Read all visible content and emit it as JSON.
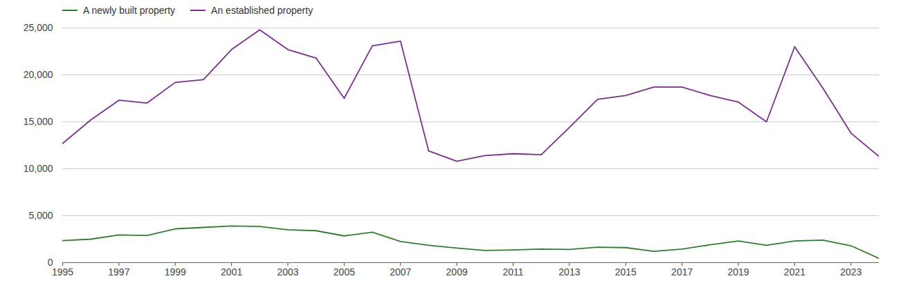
{
  "chart_data": {
    "type": "line",
    "x": [
      1995,
      1996,
      1997,
      1998,
      1999,
      2000,
      2001,
      2002,
      2003,
      2004,
      2005,
      2006,
      2007,
      2008,
      2009,
      2010,
      2011,
      2012,
      2013,
      2014,
      2015,
      2016,
      2017,
      2018,
      2019,
      2020,
      2021,
      2022,
      2023,
      2024
    ],
    "series": [
      {
        "name": "A newly built property",
        "color": "#2e7d32",
        "values": [
          2350,
          2500,
          2950,
          2900,
          3600,
          3750,
          3900,
          3850,
          3500,
          3400,
          2850,
          3250,
          2250,
          1850,
          1550,
          1300,
          1350,
          1450,
          1400,
          1650,
          1600,
          1200,
          1450,
          1900,
          2300,
          1850,
          2300,
          2400,
          1800,
          450
        ]
      },
      {
        "name": "An established property",
        "color": "#7b2d8e",
        "values": [
          12700,
          15200,
          17300,
          17000,
          19200,
          19500,
          22700,
          24800,
          22700,
          21800,
          17500,
          23100,
          23600,
          11900,
          10800,
          11400,
          11600,
          11500,
          14400,
          17400,
          17800,
          18700,
          18700,
          17800,
          17100,
          15000,
          23000,
          18600,
          13800,
          11300
        ]
      }
    ],
    "xlim": [
      1995,
      2024
    ],
    "xticks": [
      1995,
      1997,
      1999,
      2001,
      2003,
      2005,
      2007,
      2009,
      2011,
      2013,
      2015,
      2017,
      2019,
      2021,
      2023
    ],
    "ylim": [
      0,
      25000
    ],
    "yticks": [
      0,
      {
        "value": 5000,
        "label": "5,000"
      },
      {
        "value": 10000,
        "label": "10,000"
      },
      {
        "value": 15000,
        "label": "15,000"
      },
      {
        "value": 20000,
        "label": "20,000"
      },
      {
        "value": 25000,
        "label": "25,000"
      }
    ],
    "grid": true,
    "legend": "top-left"
  }
}
